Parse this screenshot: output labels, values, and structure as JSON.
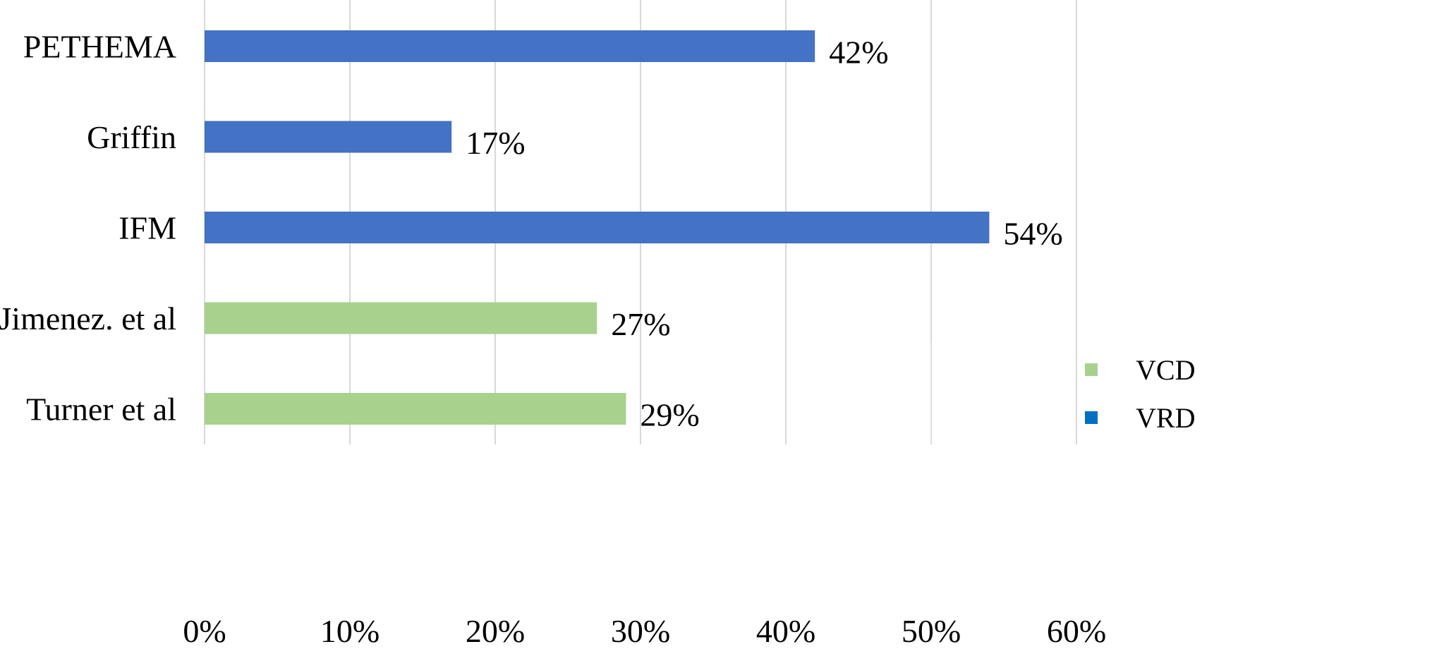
{
  "chart_data": {
    "type": "bar",
    "orientation": "horizontal",
    "categories": [
      "PETHEMA",
      "Griffin",
      "IFM",
      "Jimenez. et al",
      "Turner et al"
    ],
    "values": [
      42,
      17,
      54,
      27,
      29
    ],
    "value_labels": [
      "42%",
      "17%",
      "54%",
      "27%",
      "29%"
    ],
    "bar_series": [
      "VRD",
      "VRD",
      "VRD",
      "VCD",
      "VCD"
    ],
    "series": [
      {
        "name": "VCD",
        "color": "#a9d18e"
      },
      {
        "name": "VRD",
        "color": "#0070c0"
      }
    ],
    "bar_colors": {
      "VRD": "#4472c4",
      "VCD": "#a9d18e"
    },
    "xlim": [
      0,
      60
    ],
    "x_ticks": [
      0,
      10,
      20,
      30,
      40,
      50,
      60
    ],
    "x_tick_labels": [
      "0%",
      "10%",
      "20%",
      "30%",
      "40%",
      "50%",
      "60%"
    ],
    "grid": true,
    "grid_color": "#d9d9d9",
    "legend_position": "bottom-right",
    "title": "",
    "xlabel": "",
    "ylabel": ""
  }
}
